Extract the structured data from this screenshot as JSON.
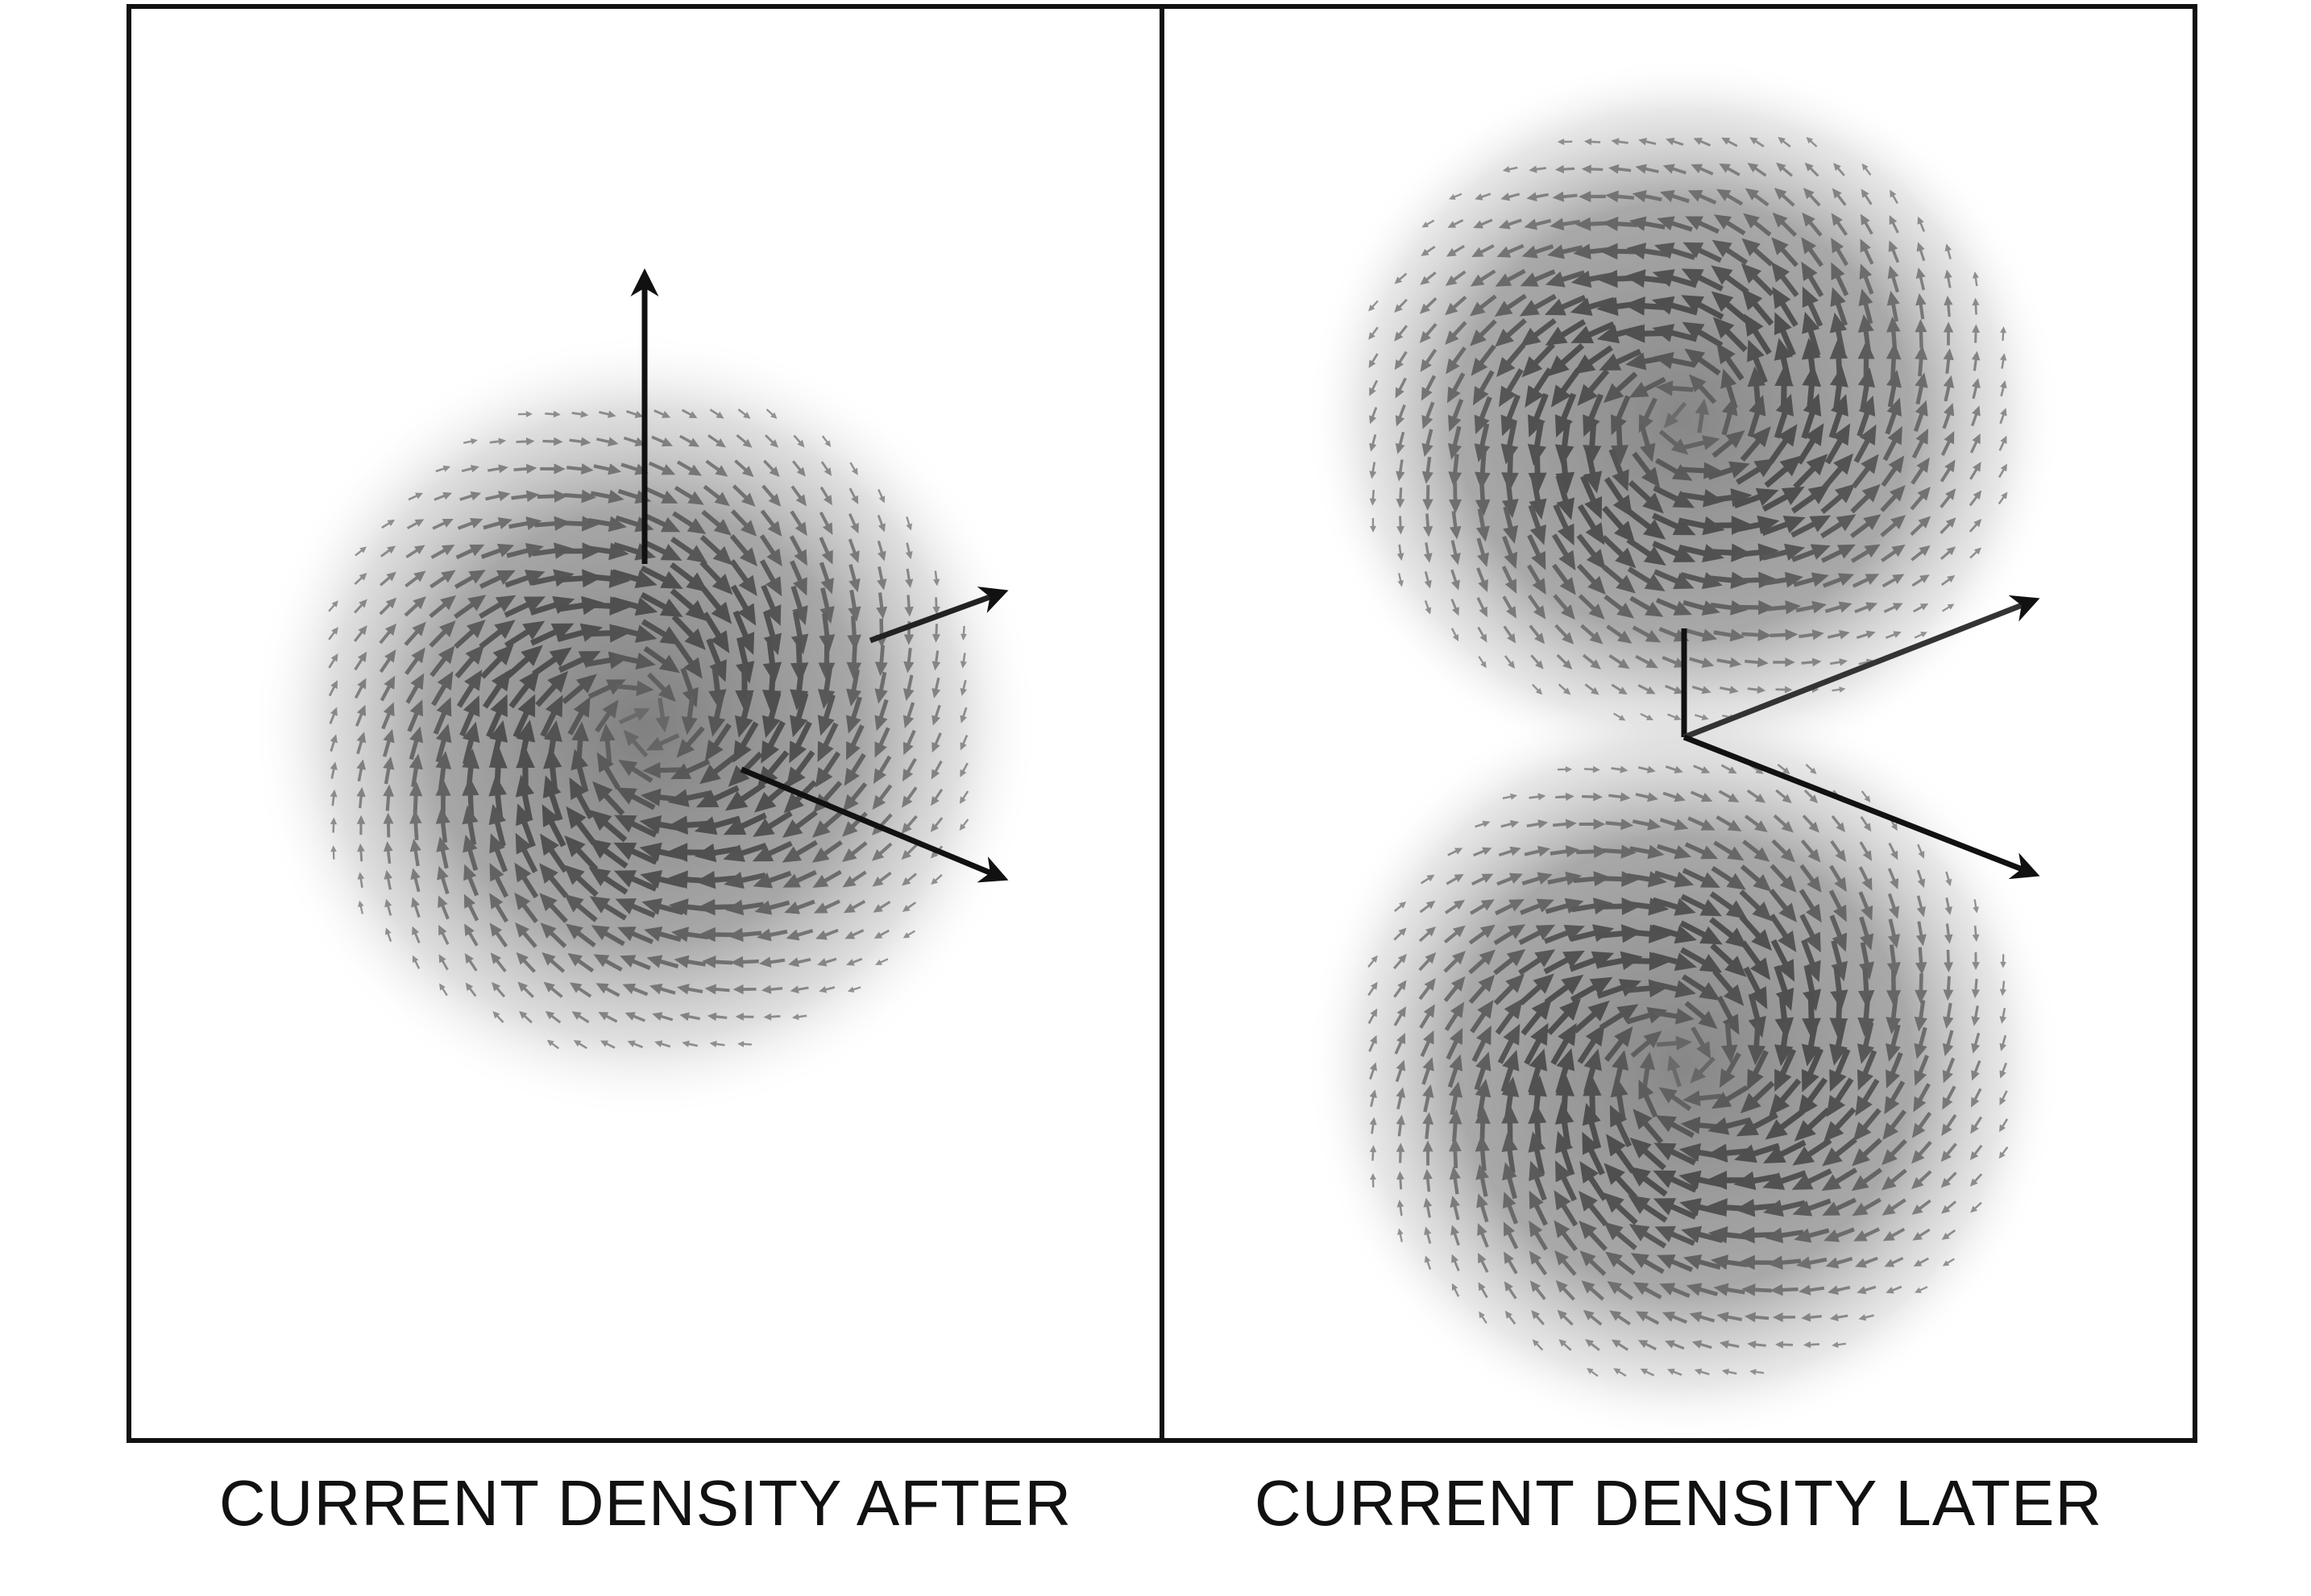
{
  "panels": [
    {
      "id": "after",
      "caption": "CURRENT DENSITY AFTER",
      "lobes": 1
    },
    {
      "id": "later",
      "caption": "CURRENT DENSITY LATER",
      "lobes": 2
    }
  ],
  "colors": {
    "frame": "#111111",
    "axis": "#111111",
    "cloud": "#8a8a8a",
    "vector": "#555555"
  },
  "icons": [
    "axis-arrow",
    "vector-arrow"
  ]
}
